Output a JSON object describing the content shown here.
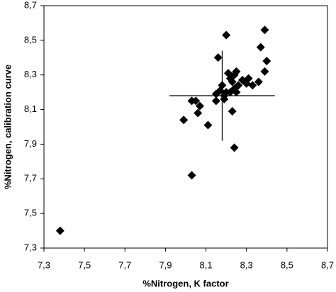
{
  "chart_data": {
    "type": "scatter",
    "xlabel": "%Nitrogen, K factor",
    "ylabel": "%Nitrogen, calibration curve",
    "color": "#000000",
    "grid": false,
    "xlim": [
      7.3,
      8.7
    ],
    "ylim": [
      7.3,
      8.7
    ],
    "xticks": [
      {
        "value": 7.3,
        "label": "7,3"
      },
      {
        "value": 7.5,
        "label": "7,5"
      },
      {
        "value": 7.7,
        "label": "7,7"
      },
      {
        "value": 7.9,
        "label": "7,9"
      },
      {
        "value": 8.1,
        "label": "8,1"
      },
      {
        "value": 8.3,
        "label": "8,3"
      },
      {
        "value": 8.5,
        "label": "8,5"
      },
      {
        "value": 8.7,
        "label": "8,7"
      }
    ],
    "yticks": [
      {
        "value": 7.3,
        "label": "7,3"
      },
      {
        "value": 7.5,
        "label": "7,5"
      },
      {
        "value": 7.7,
        "label": "7,7"
      },
      {
        "value": 7.9,
        "label": "7,9"
      },
      {
        "value": 8.1,
        "label": "8,1"
      },
      {
        "value": 8.3,
        "label": "8,3"
      },
      {
        "value": 8.5,
        "label": "8,5"
      },
      {
        "value": 8.7,
        "label": "8,7"
      }
    ],
    "x": [
      7.38,
      8.03,
      7.99,
      8.03,
      8.05,
      8.07,
      8.06,
      8.11,
      8.24,
      8.23,
      8.16,
      8.2,
      8.15,
      8.15,
      8.17,
      8.19,
      8.19,
      8.2,
      8.18,
      8.21,
      8.22,
      8.23,
      8.24,
      8.25,
      8.24,
      8.25,
      8.26,
      8.28,
      8.31,
      8.3,
      8.33,
      8.36,
      8.39,
      8.37,
      8.39,
      8.4,
      8.22
    ],
    "y": [
      7.4,
      7.72,
      8.04,
      8.15,
      8.15,
      8.12,
      8.08,
      8.01,
      7.88,
      8.09,
      8.4,
      8.53,
      8.15,
      8.19,
      8.21,
      8.16,
      8.18,
      8.2,
      8.24,
      8.31,
      8.28,
      8.26,
      8.3,
      8.32,
      8.22,
      8.2,
      8.24,
      8.27,
      8.28,
      8.25,
      8.24,
      8.26,
      8.32,
      8.46,
      8.56,
      8.38,
      8.2
    ],
    "errorbar": {
      "x": 8.18,
      "y": 8.18,
      "xerr": 0.26,
      "yerr": 0.26
    }
  }
}
